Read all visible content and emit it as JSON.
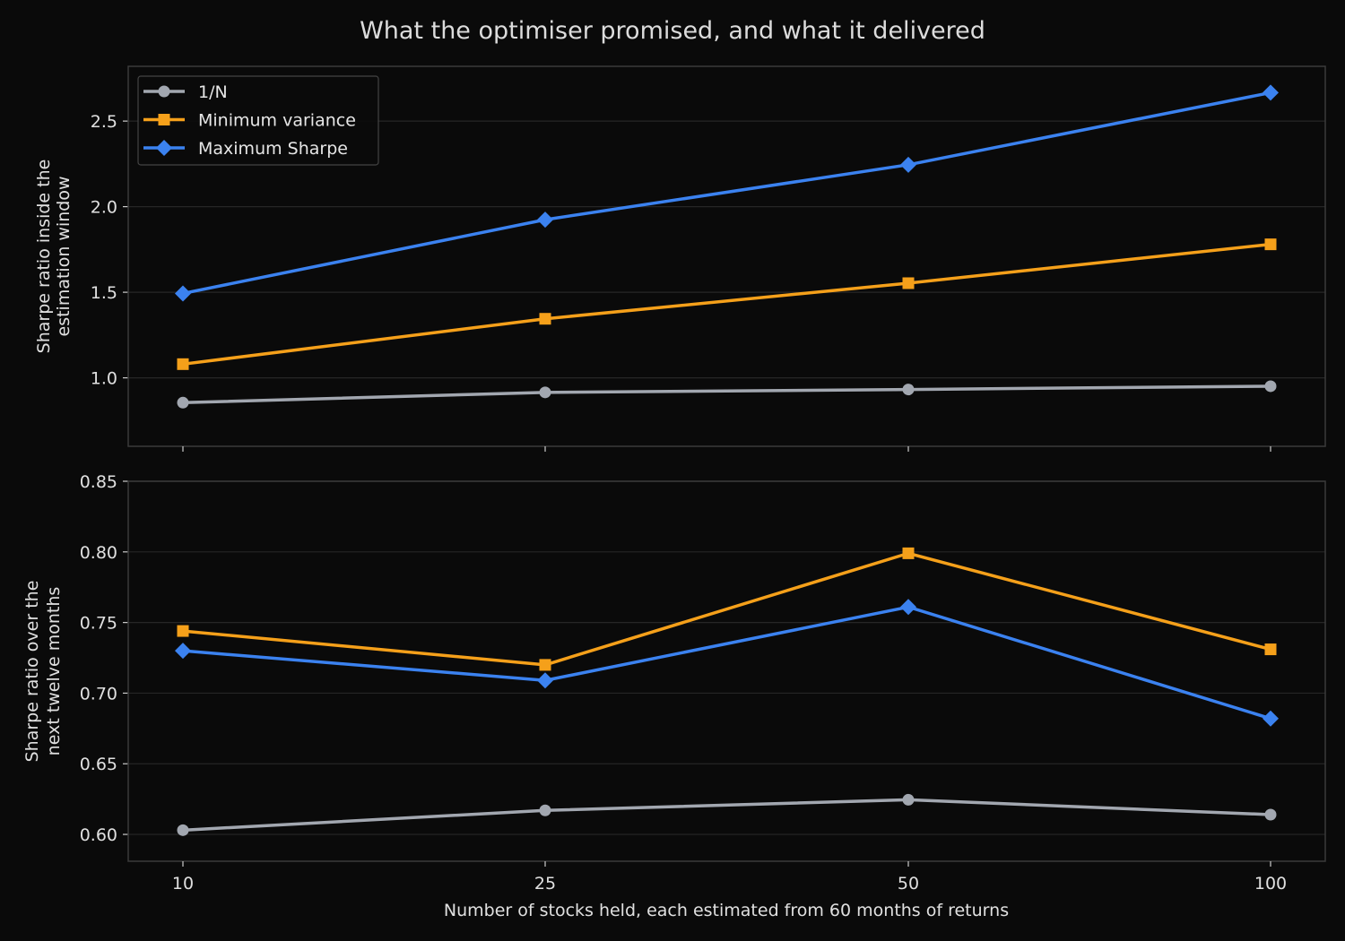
{
  "chart_data": {
    "type": "line",
    "title": "What the optimiser promised, and what it delivered",
    "xlabel": "Number of stocks held, each estimated from 60 months of returns",
    "x": [
      10,
      25,
      50,
      100
    ],
    "x_tick_labels": [
      "10",
      "25",
      "50",
      "100"
    ],
    "x_scale": "categorical-equal-spacing",
    "legend": {
      "placement": "top-left (upper panel)"
    },
    "panels": [
      {
        "ylabel": [
          "Sharpe ratio inside the",
          "estimation window"
        ],
        "ylim": [
          0.6,
          2.82
        ],
        "yticks": [
          1.0,
          1.5,
          2.0,
          2.5
        ],
        "ytick_labels": [
          "1.0",
          "1.5",
          "2.0",
          "2.5"
        ],
        "grid": true,
        "series": [
          {
            "name": "1/N",
            "marker": "circle",
            "color": "#a2a7b0",
            "values": [
              0.855,
              0.915,
              0.932,
              0.951
            ]
          },
          {
            "name": "Minimum variance",
            "marker": "square",
            "color": "#f5a01a",
            "values": [
              1.08,
              1.345,
              1.553,
              1.78
            ]
          },
          {
            "name": "Maximum Sharpe",
            "marker": "diamond",
            "color": "#3b82f0",
            "values": [
              1.493,
              1.924,
              2.245,
              2.666
            ]
          }
        ]
      },
      {
        "ylabel": [
          "Sharpe ratio over the",
          "next twelve months"
        ],
        "ylim": [
          0.581,
          0.85
        ],
        "yticks": [
          0.6,
          0.65,
          0.7,
          0.75,
          0.8,
          0.85
        ],
        "ytick_labels": [
          "0.60",
          "0.65",
          "0.70",
          "0.75",
          "0.80",
          "0.85"
        ],
        "grid": true,
        "series": [
          {
            "name": "1/N",
            "marker": "circle",
            "color": "#a2a7b0",
            "values": [
              0.603,
              0.617,
              0.6245,
              0.614
            ]
          },
          {
            "name": "Minimum variance",
            "marker": "square",
            "color": "#f5a01a",
            "values": [
              0.744,
              0.72,
              0.799,
              0.731
            ]
          },
          {
            "name": "Maximum Sharpe",
            "marker": "diamond",
            "color": "#3b82f0",
            "values": [
              0.73,
              0.709,
              0.761,
              0.682
            ]
          }
        ]
      }
    ]
  }
}
